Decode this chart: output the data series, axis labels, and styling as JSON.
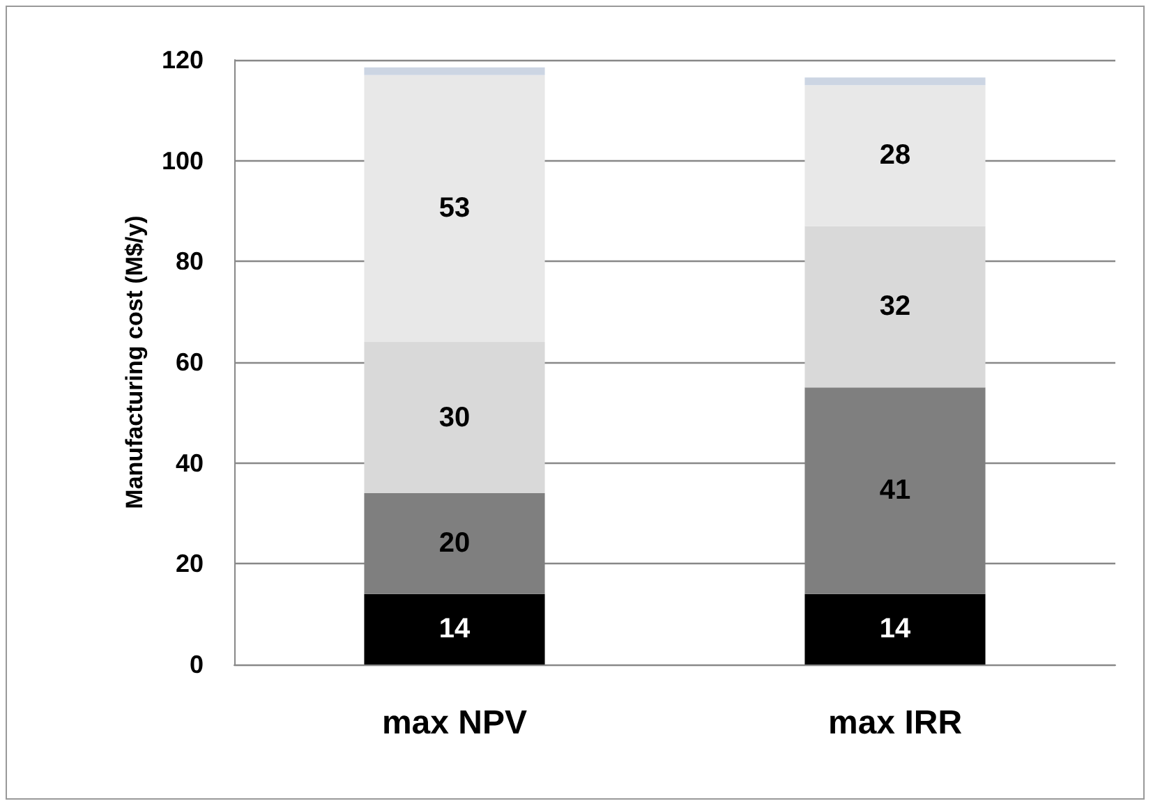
{
  "chart_data": {
    "type": "bar",
    "stacked": true,
    "ylabel": "Manufacturing cost (M$/y)",
    "categories": [
      "max NPV",
      "max IRR"
    ],
    "series": [
      {
        "color": "#000000",
        "values": [
          14,
          14
        ],
        "value_labels": [
          "14",
          "14"
        ]
      },
      {
        "color": "#7f7f7f",
        "values": [
          20,
          41
        ],
        "value_labels": [
          "20",
          "41"
        ]
      },
      {
        "color": "#d9d9d9",
        "values": [
          30,
          32
        ],
        "value_labels": [
          "30",
          "32"
        ]
      },
      {
        "color": "#e8e8e8",
        "values": [
          53,
          28
        ],
        "value_labels": [
          "53",
          "28"
        ]
      },
      {
        "color": "#ccd5e3",
        "values": [
          1.5,
          1.5
        ],
        "value_labels": [
          null,
          null
        ]
      }
    ],
    "ylim": [
      0,
      120
    ],
    "yticks": [
      0,
      20,
      40,
      60,
      80,
      100,
      120
    ],
    "grid": "y"
  }
}
